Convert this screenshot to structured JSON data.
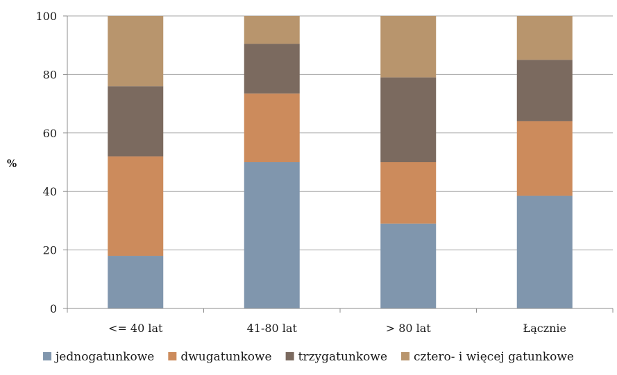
{
  "chart_data": {
    "type": "bar",
    "stacked": true,
    "title": "",
    "xlabel": "",
    "ylabel": "%",
    "ylim": [
      0,
      100
    ],
    "yticks": [
      0,
      20,
      40,
      60,
      80,
      100
    ],
    "grid": true,
    "legend_position": "bottom",
    "categories": [
      "<= 40 lat",
      "41-80 lat",
      "> 80 lat",
      "Łącznie"
    ],
    "series": [
      {
        "name": "jednogatunkowe",
        "color": "#8096ad",
        "values": [
          18,
          50,
          29,
          38.5
        ]
      },
      {
        "name": "dwugatunkowe",
        "color": "#cc8b5c",
        "values": [
          34,
          23.5,
          21,
          25.5
        ]
      },
      {
        "name": "trzygatunkowe",
        "color": "#7b6a5f",
        "values": [
          24,
          17,
          29,
          21
        ]
      },
      {
        "name": "cztero- i więcej gatunkowe",
        "color": "#b8956d",
        "values": [
          24,
          9.5,
          21,
          15
        ]
      }
    ]
  }
}
